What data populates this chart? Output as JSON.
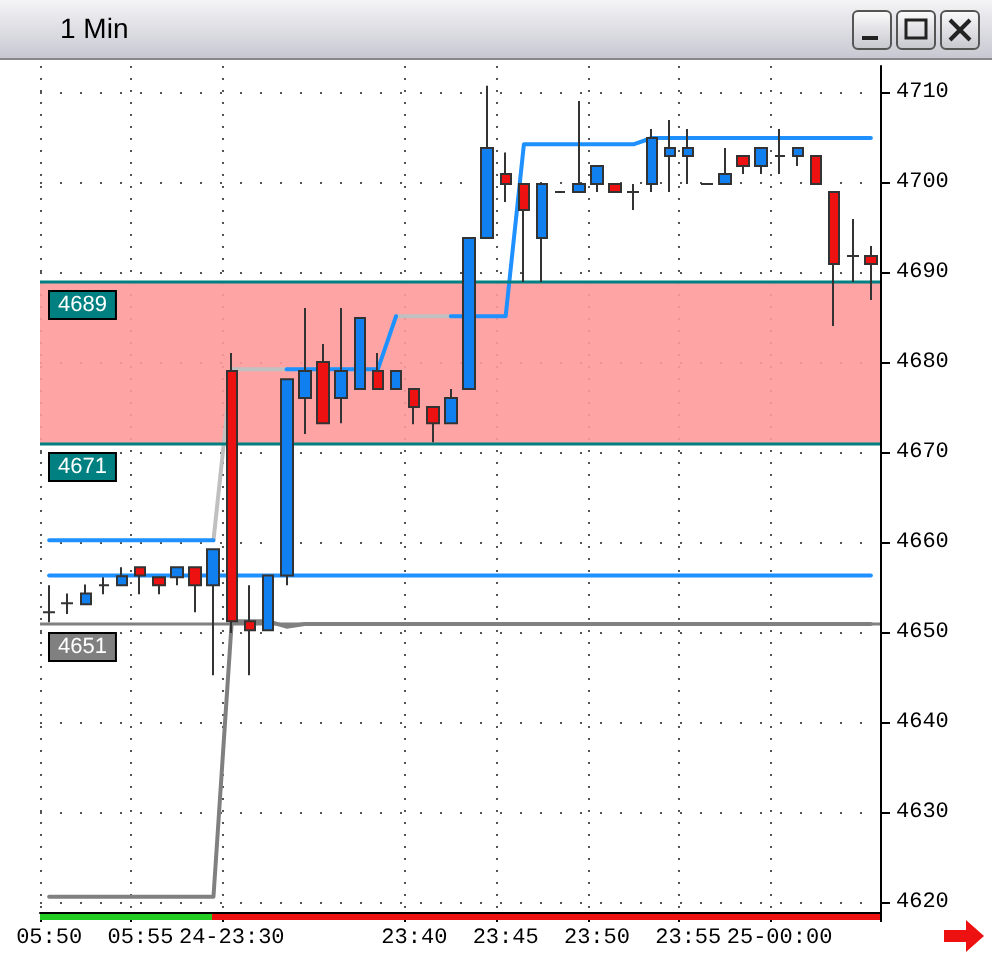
{
  "chart_data": {
    "type": "candlestick",
    "title": "1 Min",
    "categories": [
      "05:50",
      null,
      null,
      null,
      null,
      "05:55",
      null,
      null,
      null,
      null,
      "24-23:30",
      null,
      null,
      null,
      null,
      null,
      null,
      null,
      null,
      null,
      "23:40",
      null,
      null,
      null,
      null,
      "23:45",
      null,
      null,
      null,
      null,
      "23:50",
      null,
      null,
      null,
      null,
      "23:55",
      null,
      null,
      null,
      null,
      "25-00:00",
      null,
      null,
      null,
      null,
      null
    ],
    "ohlc": [
      [
        4652.3,
        4655.3,
        4651.2,
        4652.3
      ],
      [
        4653.3,
        4654.4,
        4652.1,
        4653.3
      ],
      [
        4653.2,
        4655.4,
        4653.2,
        4654.4
      ],
      [
        4655.3,
        4656.2,
        4654.3,
        4655.3
      ],
      [
        4655.3,
        4657.3,
        4655.3,
        4656.3
      ],
      [
        4657.3,
        4657.3,
        4654.3,
        4656.4
      ],
      [
        4656.2,
        4656.2,
        4654.3,
        4655.3
      ],
      [
        4656.2,
        4657.3,
        4655.3,
        4657.3
      ],
      [
        4657.3,
        4657.3,
        4652.3,
        4655.3
      ],
      [
        4655.3,
        4659.3,
        4645.3,
        4659.3
      ],
      [
        4679.1,
        4681.1,
        4650.0,
        4651.3
      ],
      [
        4651.3,
        4655.3,
        4645.3,
        4650.3
      ],
      [
        4650.3,
        4656.4,
        4650.3,
        4656.4
      ],
      [
        4656.4,
        4678.2,
        4655.3,
        4678.2
      ],
      [
        4676.1,
        4686.1,
        4672.1,
        4679.1
      ],
      [
        4680.1,
        4682.1,
        4673.3,
        4673.3
      ],
      [
        4676.1,
        4686.1,
        4673.3,
        4679.1
      ],
      [
        4677.1,
        4685.0,
        4677.1,
        4685.0
      ],
      [
        4679.1,
        4681.1,
        4677.1,
        4677.1
      ],
      [
        4677.1,
        4679.1,
        4677.1,
        4679.1
      ],
      [
        4677.1,
        4677.1,
        4673.2,
        4675.1
      ],
      [
        4675.1,
        4675.1,
        4671.2,
        4673.3
      ],
      [
        4673.3,
        4677.1,
        4673.3,
        4676.1
      ],
      [
        4677.1,
        4693.9,
        4677.1,
        4693.9
      ],
      [
        4693.9,
        4710.8,
        4693.9,
        4703.9
      ],
      [
        4701.0,
        4703.4,
        4697.9,
        4699.9
      ],
      [
        4699.9,
        4699.9,
        4689.0,
        4697.0
      ],
      [
        4693.9,
        4699.9,
        4689.0,
        4699.9
      ],
      [
        4699.0,
        4699.0,
        4699.0,
        4699.0
      ],
      [
        4699.0,
        4709.1,
        4699.0,
        4699.9
      ],
      [
        4699.9,
        4701.9,
        4699.0,
        4701.9
      ],
      [
        4699.9,
        4699.9,
        4699.0,
        4699.0
      ],
      [
        4699.0,
        4699.9,
        4697.0,
        4699.0
      ],
      [
        4699.9,
        4706.0,
        4699.0,
        4705.0
      ],
      [
        4703.0,
        4707.0,
        4699.0,
        4703.9
      ],
      [
        4703.0,
        4706.0,
        4699.9,
        4703.9
      ],
      [
        4699.9,
        4699.9,
        4699.9,
        4699.9
      ],
      [
        4699.9,
        4703.9,
        4699.9,
        4701.0
      ],
      [
        4703.0,
        4703.0,
        4701.0,
        4701.9
      ],
      [
        4701.9,
        4703.9,
        4701.0,
        4703.9
      ],
      [
        4703.0,
        4706.0,
        4701.0,
        4703.0
      ],
      [
        4703.0,
        4703.9,
        4701.9,
        4703.9
      ],
      [
        4703.0,
        4703.0,
        4699.9,
        4699.9
      ],
      [
        4699.0,
        4699.0,
        4684.1,
        4691.0
      ],
      [
        4691.9,
        4696.0,
        4689.0,
        4691.9
      ],
      [
        4691.9,
        4693.0,
        4687.0,
        4691.0
      ]
    ],
    "colors": [
      "#333333",
      "#333333",
      "#1080f0",
      "#333333",
      "#1080f0",
      "#ee1111",
      "#ee1111",
      "#1080f0",
      "#ee1111",
      "#1080f0",
      "#ee1111",
      "#ee1111",
      "#1080f0",
      "#1080f0",
      "#1080f0",
      "#ee1111",
      "#1080f0",
      "#1080f0",
      "#ee1111",
      "#1080f0",
      "#ee1111",
      "#ee1111",
      "#1080f0",
      "#1080f0",
      "#1080f0",
      "#ee1111",
      "#ee1111",
      "#1080f0",
      "#333333",
      "#1080f0",
      "#1080f0",
      "#ee1111",
      "#333333",
      "#1080f0",
      "#1080f0",
      "#1080f0",
      "#333333",
      "#1080f0",
      "#ee1111",
      "#1080f0",
      "#333333",
      "#1080f0",
      "#ee1111",
      "#ee1111",
      "#333333",
      "#ee1111"
    ],
    "series": [
      {
        "type": "line",
        "color": "#c0c0c0",
        "values": [
          null,
          null,
          null,
          null,
          null,
          null,
          null,
          null,
          null,
          4660.3,
          4679.3,
          4679.3,
          4679.3,
          4679.3,
          4679.3,
          4679.3,
          4679.3,
          4679.3,
          4679.3,
          4685.2,
          4685.2,
          4685.2,
          4685.2,
          4685.2,
          null,
          null,
          null,
          null,
          null,
          null,
          null,
          null,
          null,
          null,
          null,
          null,
          null,
          null,
          null,
          null,
          null,
          null,
          null,
          null,
          null,
          null
        ]
      },
      {
        "type": "line",
        "color": "#1e90ff",
        "values": [
          4660.3,
          4660.3,
          4660.3,
          4660.3,
          4660.3,
          4660.3,
          4660.3,
          4660.3,
          4660.3,
          4660.3,
          null,
          null,
          null,
          4679.3,
          4679.3,
          4679.3,
          4679.3,
          4679.3,
          4679.3,
          4685.2,
          null,
          null,
          4685.2,
          4685.2,
          4685.2,
          4685.2,
          4704.3,
          4704.3,
          4704.3,
          4704.3,
          4704.3,
          4704.3,
          4704.3,
          4705.0,
          4705.0,
          4705.0,
          4705.0,
          4705.0,
          4705.0,
          4705.0,
          4705.0,
          4705.0,
          4705.0,
          4705.0,
          4705.0,
          4705.0
        ]
      },
      {
        "type": "line",
        "color": "#1e90ff",
        "values": [
          4656.4,
          4656.4,
          4656.4,
          4656.4,
          4656.4,
          4656.4,
          4656.4,
          4656.4,
          4656.4,
          4656.4,
          4656.4,
          4656.4,
          4656.4,
          4656.4,
          4656.4,
          4656.4,
          4656.4,
          4656.4,
          4656.4,
          4656.4,
          4656.4,
          4656.4,
          4656.4,
          4656.4,
          4656.4,
          4656.4,
          4656.4,
          4656.4,
          4656.4,
          4656.4,
          4656.4,
          4656.4,
          4656.4,
          4656.4,
          4656.4,
          4656.4,
          4656.4,
          4656.4,
          4656.4,
          4656.4,
          4656.4,
          4656.4,
          4656.4,
          4656.4,
          4656.4,
          4656.4
        ]
      },
      {
        "type": "line",
        "color": "#808080",
        "values": [
          4620.7,
          4620.7,
          4620.7,
          4620.7,
          4620.7,
          4620.7,
          4620.7,
          4620.7,
          4620.7,
          4620.7,
          4651.3,
          4651.3,
          4651.3,
          4650.7,
          4651,
          4651,
          4651,
          4651,
          4651,
          4651,
          4651,
          4651,
          4651,
          4651,
          4651,
          4651,
          4651,
          4651,
          4651,
          4651,
          4651,
          4651,
          4651,
          4651,
          4651,
          4651,
          4651,
          4651,
          4651,
          4651,
          4651,
          4651,
          4651,
          4651,
          4651,
          4651
        ]
      }
    ],
    "ylim": [
      4619,
      4713
    ],
    "yticks": [
      4620,
      4630,
      4640,
      4650,
      4660,
      4670,
      4680,
      4690,
      4700,
      4710
    ],
    "ref_lines": [
      {
        "axis": "y",
        "value": 4689,
        "label": "4689",
        "color": "#008080"
      },
      {
        "axis": "y",
        "value": 4671,
        "label": "4671",
        "color": "#008080"
      },
      {
        "axis": "y",
        "value": 4651,
        "label": "4651",
        "color": "#808080"
      }
    ],
    "bands": [
      {
        "axis": "y",
        "from": 4671,
        "to": 4689,
        "color": "#ff9a9a"
      }
    ],
    "grid": true,
    "marker": "none",
    "line_style": "solid"
  }
}
